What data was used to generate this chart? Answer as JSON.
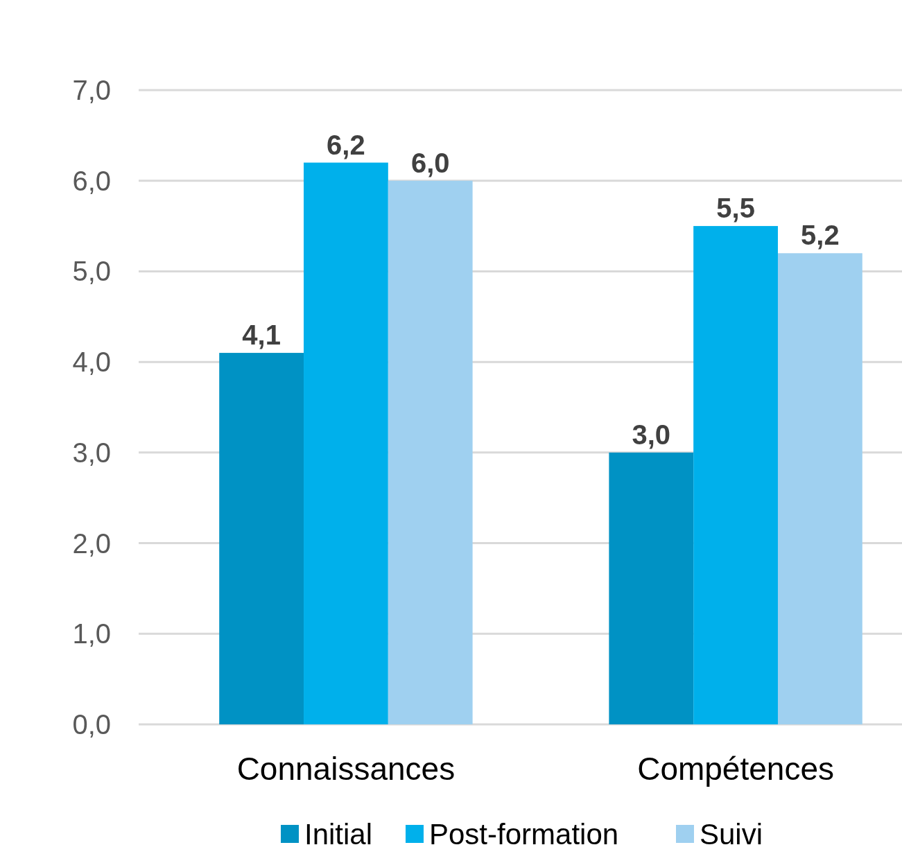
{
  "chart_data": {
    "type": "bar",
    "categories": [
      "Connaissances",
      "Compétences"
    ],
    "series": [
      {
        "name": "Initial",
        "color": "#0092c4",
        "values": [
          4.1,
          3.0
        ],
        "value_labels": [
          "4,1",
          "3,0"
        ]
      },
      {
        "name": "Post-formation",
        "color": "#00b0eb",
        "values": [
          6.2,
          5.5
        ],
        "value_labels": [
          "6,2",
          "5,5"
        ]
      },
      {
        "name": "Suivi",
        "color": "#9fd0f0",
        "values": [
          6.0,
          5.2
        ],
        "value_labels": [
          "6,0",
          "5,2"
        ]
      }
    ],
    "ylim": [
      0,
      7
    ],
    "yticks": [
      {
        "value": 0,
        "label": "0,0"
      },
      {
        "value": 1,
        "label": "1,0"
      },
      {
        "value": 2,
        "label": "2,0"
      },
      {
        "value": 3,
        "label": "3,0"
      },
      {
        "value": 4,
        "label": "4,0"
      },
      {
        "value": 5,
        "label": "5,0"
      },
      {
        "value": 6,
        "label": "6,0"
      },
      {
        "value": 7,
        "label": "7,0"
      }
    ],
    "grid": "y",
    "legend": "bottom"
  }
}
